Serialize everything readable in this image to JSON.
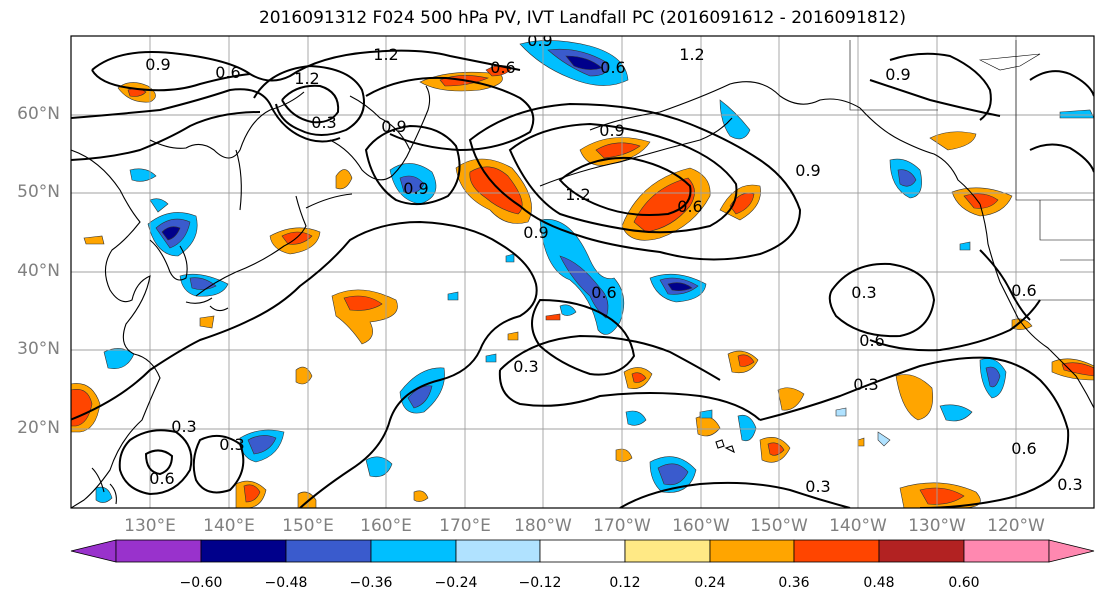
{
  "title": "2016091312 F024 500 hPa PV, IVT Landfall PC (2016091612 - 2016091812)",
  "lat_labels": [
    "60°N",
    "50°N",
    "40°N",
    "30°N",
    "20°N"
  ],
  "lon_labels": [
    "130°E",
    "140°E",
    "150°E",
    "160°E",
    "170°E",
    "180°W",
    "170°W",
    "160°W",
    "150°W",
    "140°W",
    "130°W",
    "120°W"
  ],
  "contour_labels": [
    "0.9",
    "0.6",
    "1.2",
    "0.9",
    "1.2",
    "0.6",
    "0.9",
    "0.6",
    "0.3",
    "0.6",
    "0.9",
    "0.9",
    "0.9",
    "1.2",
    "1.2",
    "0.6",
    "0.9",
    "0.9",
    "0.3",
    "0.6",
    "0.3",
    "0.3",
    "0.3",
    "0.6",
    "0.3",
    "0.3",
    "0.6",
    "0.6",
    "0.3"
  ],
  "colorbar": {
    "ticks": [
      "−0.60",
      "−0.48",
      "−0.36",
      "−0.24",
      "−0.12",
      "0.12",
      "0.24",
      "0.36",
      "0.48",
      "0.60"
    ],
    "colors": [
      "#9932cc",
      "#00008b",
      "#3a5bcd",
      "#00bfff",
      "#b0e2ff",
      "#ffffff",
      "#ffe985",
      "#ffa500",
      "#ff4500",
      "#b22222",
      "#ff88b0"
    ]
  }
}
